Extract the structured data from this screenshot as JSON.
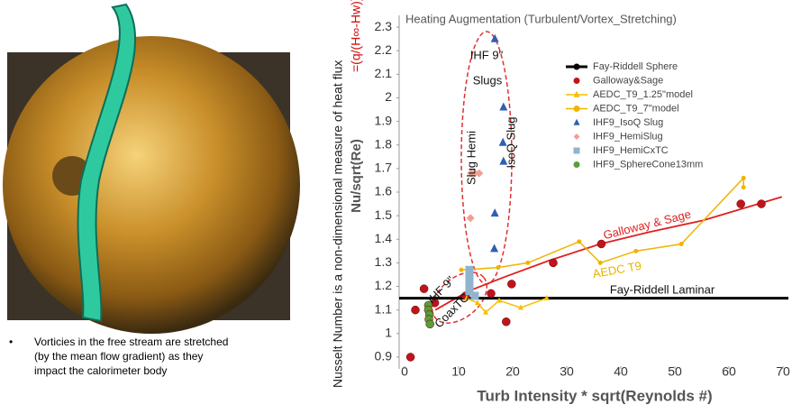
{
  "caption": [
    "Vorticies in the free stream are stretched",
    "(by the mean flow gradient) as they",
    "impact the calorimeter body"
  ],
  "bullet": "•",
  "chart_data": {
    "type": "scatter",
    "title": "Heating Augmentation  (Turbulent/Vortex_Stretching)",
    "x_label": "Turb Intensity * sqrt(Reynolds #)",
    "y_label": "Nu/sqrt(Re)",
    "y_label_outer": "Nusselt Number is a non-dimensional measure of heat flux",
    "y_label_formula": "=(q/(H∞-Hw))*(Cp/k)*D",
    "xlim": [
      -1,
      71
    ],
    "ylim": [
      0.85,
      2.35
    ],
    "xticks": [
      0,
      10,
      20,
      30,
      40,
      50,
      60,
      70
    ],
    "yticks": [
      0.9,
      1,
      1.1,
      1.2,
      1.3,
      1.4,
      1.5,
      1.6,
      1.7,
      1.8,
      1.9,
      2,
      2.1,
      2.2,
      2.3
    ],
    "legend": "upper-right",
    "series": [
      {
        "name": "Fay-Riddell Sphere",
        "color": "#000000",
        "marker": "circle",
        "line": true,
        "x": [
          -1,
          71
        ],
        "values": [
          1.15,
          1.15
        ]
      },
      {
        "name": "Galloway&Sage",
        "color": "#c0141c",
        "marker": "circle",
        "line": false,
        "x": [
          1.1,
          2,
          3.6,
          5.6,
          11.3,
          16,
          18.8,
          19.8,
          27.5,
          36.4,
          62.2,
          66
        ],
        "values": [
          0.9,
          1.1,
          1.19,
          1.13,
          1.16,
          1.17,
          1.05,
          1.21,
          1.3,
          1.38,
          1.55,
          1.55
        ]
      },
      {
        "name": "AEDC_T9_1.25\"model",
        "color": "#f5c000",
        "marker": "triangle",
        "line": true,
        "x": [
          11.5,
          13.5,
          15,
          17.5,
          21.5,
          26.3
        ],
        "values": [
          1.15,
          1.13,
          1.09,
          1.14,
          1.11,
          1.15
        ]
      },
      {
        "name": "AEDC_T9_7\"model",
        "color": "#f0b400",
        "marker": "circle",
        "line": true,
        "x": [
          10.5,
          17.3,
          22.8,
          32.3,
          36.2,
          42.8,
          51.2,
          62.7,
          62.7
        ],
        "values": [
          1.27,
          1.28,
          1.3,
          1.39,
          1.3,
          1.35,
          1.38,
          1.66,
          1.62
        ]
      },
      {
        "name": "IHF9_IsoQ Slug",
        "color": "#2f5fb0",
        "marker": "triangle",
        "line": false,
        "x": [
          16.7,
          18.3,
          18.2,
          18.3,
          16.7,
          16.6
        ],
        "values": [
          2.25,
          1.96,
          1.81,
          1.73,
          1.51,
          1.36
        ]
      },
      {
        "name": "IHF9_HemiSlug",
        "color": "#f0a090",
        "marker": "diamond",
        "line": false,
        "x": [
          12.3,
          13,
          13.8,
          12.2
        ],
        "values": [
          1.68,
          1.68,
          1.68,
          1.49
        ]
      },
      {
        "name": "IHF9_HemiCxTC",
        "color": "#8fb4cf",
        "marker": "square",
        "line": false,
        "x": [
          12,
          12,
          12,
          12,
          13
        ],
        "values": [
          1.27,
          1.24,
          1.21,
          1.18,
          1.16
        ]
      },
      {
        "name": "IHF9_SphereCone13mm",
        "color": "#5a9e3a",
        "marker": "circle",
        "line": false,
        "x": [
          4.4,
          4.4,
          4.6,
          4.5,
          4.7
        ],
        "values": [
          1.12,
          1.1,
          1.08,
          1.06,
          1.04
        ]
      }
    ],
    "fits": [
      {
        "label": "Galloway & Sage",
        "color": "#e02020",
        "x": [
          5.7,
          11.8,
          18.5,
          26.8,
          36.2,
          45.2,
          55.2,
          69.8
        ],
        "values": [
          1.1,
          1.18,
          1.24,
          1.31,
          1.38,
          1.43,
          1.48,
          1.58
        ]
      }
    ],
    "annotations": [
      "IHF 9\"",
      "Slugs",
      "Slug Hemi",
      "IsoQ Slug",
      "Fay-Riddell Laminar",
      "AEDC T9",
      "IHF 9\"",
      "CoaxTC"
    ]
  }
}
